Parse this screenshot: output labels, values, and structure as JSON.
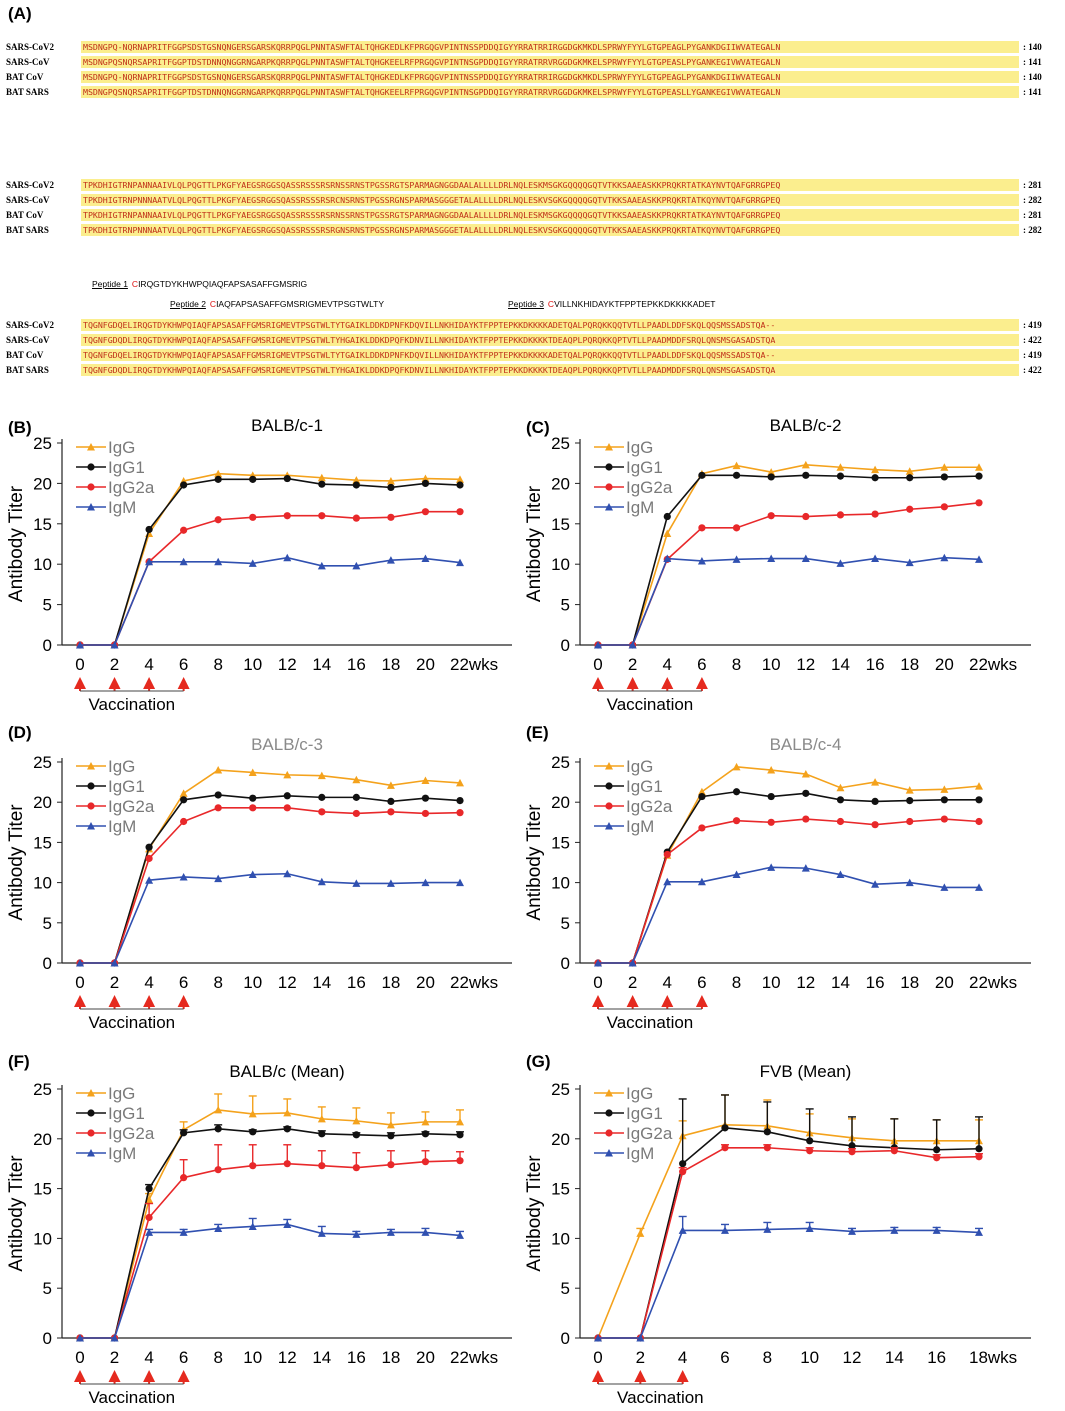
{
  "alignment": {
    "label": "(A)",
    "blocks": [
      {
        "rows": [
          {
            "name": "SARS-CoV2",
            "seq": "MSDNGPQ-NQRNAPRITFGGPSDSTGSNQNGERSGARSKQRRPQGLPNNTASWFTALTQHGKEDLKFPRGQGVPINTNSSPDDQIGYYRRATRRIRGGDGKMKDLSPRWYFYYLGTGPEAGLPYGANKDGIIWVATEGALN",
            "num": "140"
          },
          {
            "name": "SARS-CoV",
            "seq": "MSDNGPQSNQRSAPRITFGGPTDSTDNNQNGGRNGARPKQRRPQGLPNNTASWFTALTQHGKEELRFPRGQGVPINTNSGPDDQIGYYRRATRRVRGGDGKMKELSPRWYFYYLGTGPEASLPYGANKEGIVWVATEGALN",
            "num": "141"
          },
          {
            "name": "BAT CoV",
            "seq": "MSDNGPQ-NQRNAPRITFGGPSDSTGSNQNGERSGARSKQRRPQGLPNNTASWFTALTQHGKEDLKFPRGQGVPINTNSSPDDQIGYYRRATRRIRGGDGKMKDLSPRWYFYYLGTGPEAGLPYGANKDGIIWVATEGALN",
            "num": "140"
          },
          {
            "name": "BAT SARS",
            "seq": "MSDNGPQSNQRSAPRITFGGPTDSTDNNQNGGRNGARPKQRRPQGLPNNTASWFTALTQHGKEELRFPRGQGVPINTNSGPDDQIGYYRRATRRVRGGDGKMKELSPRWYFYYLGTGPEASLLYGANKEGIVWVATEGALN",
            "num": "141"
          }
        ]
      },
      {
        "rows": [
          {
            "name": "SARS-CoV2",
            "seq": "TPKDHIGTRNPANNAAIVLQLPQGTTLPKGFYAEGSRGGSQASSRSSSRSRNSSRNSTPGSSRGTSPARMAGNGGDAALALLLLDRLNQLESKMSGKGQQQQGQTVTKKSAAEASKKPRQKRTATKAYNVTQAFGRRGPEQ",
            "num": "281"
          },
          {
            "name": "SARS-CoV",
            "seq": "TPKDHIGTRNPNNNAATVLQLPQGTTLPKGFYAEGSRGGSQASSRSSSRSRCNSRNSTPGSSRGNSPARMASGGGETALALLLLDRLNQLESKVSGKGQQQQGQTVTKKSAAEASKKPRQKRTATKQYNVTQAFGRRGPEQ",
            "num": "282"
          },
          {
            "name": "BAT CoV",
            "seq": "TPKDHIGTRNPANNAAIVLQLPQGTTLPKGFYAEGSRGGSQASSRSSSRSRNSSRNSTPGSSRGTSPARMAGNGGDAALALLLLDRLNQLESKMSGKGQQQQGQTVTKKSAAEASKKPRQKRTATKAYNVTQAFGRRGPEQ",
            "num": "281"
          },
          {
            "name": "BAT SARS",
            "seq": "TPKDHIGTRNPNNNAATVLQLPQGTTLPKGFYAEGSRGGSQASSRSSSRSRGNSRNSTPGSSRGNSPARMASGGGETALALLLLDRLNQLESKVSGKGQQQQGQTVTKKSAAEASKKPRQKRTATKQYNVTQAFGRRGPEQ",
            "num": "282"
          }
        ]
      },
      {
        "rows": [
          {
            "name": "SARS-CoV2",
            "seq": "TQGNFGDQELIRQGTDYKHWPQIAQFAPSASAFFGMSRIGMEVTPSGTWLTYTGAIKLDDKDPNFKDQVILLNKHIDAYKTFPPTEPKKDKKKKADETQALPQRQKKQQTVTLLPAADLDDFSKQLQQSMSSADSTQA--",
            "num": "419"
          },
          {
            "name": "SARS-CoV",
            "seq": "TQGNFGDQDLIRQGTDYKHWPQIAQFAPSASAFFGMSRIGMEVTPSGTWLTYHGAIKLDDKDPQFKDNVILLNKHIDAYKTFPPTEPKKDKKKKTDEAQPLPQRQKKQPTVTLLPAADMDDFSRQLQNSMSGASADSTQA",
            "num": "422"
          },
          {
            "name": "BAT CoV",
            "seq": "TQGNFGDQELIRQGTDYKHWPQIAQFAPSASAFFGMSRIGMEVTPSGTWLTYTGAIKLDDKDPNFKDQVILLNKHIDAYKTFPPTEPKKDKKKKADETQALPQRQKKQQTVTLLPAADLDDFSKQLQQSMSSADSTQA--",
            "num": "419"
          },
          {
            "name": "BAT SARS",
            "seq": "TQGNFGDQDLIRQGTDYKHWPQIAQFAPSASAFFGMSRIGMEVTPSGTWLTYHGAIKLDDKDPQFKDNVILLNKHIDAYKTFPPTEPKKDKKKKTDEAQPLPQRQKKQPTVTLLPAADMDDFSRQLQNSMSGASADSTQA",
            "num": "422"
          }
        ]
      }
    ],
    "peptides": [
      {
        "label": "Peptide 1",
        "lead": "C",
        "seq": "IRQGTDYKHWPQIAQFAPSASAFFGMSRIG"
      },
      {
        "label": "Peptide 2",
        "lead": "C",
        "seq": "IAQFAPSASAFFGMSRIGMEVTPSGTWLTY"
      },
      {
        "label": "Peptide 3",
        "lead": "C",
        "seq": "VILLNKHIDAYKTFPPTEPKKDKKKKADET"
      }
    ]
  },
  "chart_data": [
    {
      "panel": "(B)",
      "type": "line",
      "title": "BALB/c-1",
      "title_color": "#000000",
      "ylabel": "Antibody Titer",
      "ylim": [
        0,
        25
      ],
      "yticks": [
        0,
        5,
        10,
        15,
        20,
        25
      ],
      "xticks": [
        0,
        2,
        4,
        6,
        8,
        10,
        12,
        14,
        16,
        18,
        20,
        22
      ],
      "x_unit": "wks",
      "x": [
        0,
        2,
        4,
        6,
        8,
        10,
        12,
        14,
        16,
        18,
        20,
        22
      ],
      "vaccination": {
        "label": "Vaccination",
        "weeks": [
          0,
          2,
          4,
          6
        ]
      },
      "series": [
        {
          "name": "IgG",
          "color": "#f4a21c",
          "marker": "triangle",
          "values": [
            0,
            0,
            13.8,
            20.3,
            21.2,
            21,
            21,
            20.7,
            20.4,
            20.3,
            20.6,
            20.5
          ]
        },
        {
          "name": "IgG1",
          "color": "#111111",
          "marker": "circle",
          "values": [
            0,
            0,
            14.3,
            19.8,
            20.5,
            20.5,
            20.6,
            19.9,
            19.8,
            19.5,
            20,
            19.8
          ]
        },
        {
          "name": "IgG2a",
          "color": "#e8282a",
          "marker": "circle",
          "values": [
            0,
            0,
            10.3,
            14.2,
            15.5,
            15.8,
            16,
            16,
            15.7,
            15.8,
            16.5,
            16.5
          ]
        },
        {
          "name": "IgM",
          "color": "#3050b0",
          "marker": "triangle",
          "values": [
            0,
            0,
            10.3,
            10.3,
            10.3,
            10.1,
            10.8,
            9.8,
            9.8,
            10.5,
            10.7,
            10.2
          ]
        }
      ]
    },
    {
      "panel": "(C)",
      "type": "line",
      "title": "BALB/c-2",
      "title_color": "#000000",
      "ylabel": "Antibody Titer",
      "ylim": [
        0,
        25
      ],
      "yticks": [
        0,
        5,
        10,
        15,
        20,
        25
      ],
      "xticks": [
        0,
        2,
        4,
        6,
        8,
        10,
        12,
        14,
        16,
        18,
        20,
        22
      ],
      "x_unit": "wks",
      "x": [
        0,
        2,
        4,
        6,
        8,
        10,
        12,
        14,
        16,
        18,
        20,
        22
      ],
      "vaccination": {
        "label": "Vaccination",
        "weeks": [
          0,
          2,
          4,
          6
        ]
      },
      "series": [
        {
          "name": "IgG",
          "color": "#f4a21c",
          "marker": "triangle",
          "values": [
            0,
            0,
            13.8,
            21.2,
            22.2,
            21.4,
            22.3,
            22,
            21.7,
            21.5,
            22,
            22
          ]
        },
        {
          "name": "IgG1",
          "color": "#111111",
          "marker": "circle",
          "values": [
            0,
            0,
            15.9,
            21,
            21,
            20.8,
            21,
            20.9,
            20.7,
            20.7,
            20.8,
            20.9
          ]
        },
        {
          "name": "IgG2a",
          "color": "#e8282a",
          "marker": "circle",
          "values": [
            0,
            0,
            10.6,
            14.5,
            14.5,
            16,
            15.9,
            16.1,
            16.2,
            16.8,
            17.1,
            17.6
          ]
        },
        {
          "name": "IgM",
          "color": "#3050b0",
          "marker": "triangle",
          "values": [
            0,
            0,
            10.7,
            10.4,
            10.6,
            10.7,
            10.7,
            10.1,
            10.7,
            10.2,
            10.8,
            10.6
          ]
        }
      ]
    },
    {
      "panel": "(D)",
      "type": "line",
      "title": "BALB/c-3",
      "title_color": "#8a8a8a",
      "ylabel": "Antibody Titer",
      "ylim": [
        0,
        25
      ],
      "yticks": [
        0,
        5,
        10,
        15,
        20,
        25
      ],
      "xticks": [
        0,
        2,
        4,
        6,
        8,
        10,
        12,
        14,
        16,
        18,
        20,
        22
      ],
      "x_unit": "wks",
      "x": [
        0,
        2,
        4,
        6,
        8,
        10,
        12,
        14,
        16,
        18,
        20,
        22
      ],
      "vaccination": {
        "label": "Vaccination",
        "weeks": [
          0,
          2,
          4,
          6
        ]
      },
      "series": [
        {
          "name": "IgG",
          "color": "#f4a21c",
          "marker": "triangle",
          "values": [
            0,
            0,
            14.2,
            21.1,
            24,
            23.7,
            23.4,
            23.3,
            22.8,
            22.1,
            22.7,
            22.4
          ]
        },
        {
          "name": "IgG1",
          "color": "#111111",
          "marker": "circle",
          "values": [
            0,
            0,
            14.4,
            20.3,
            20.9,
            20.5,
            20.8,
            20.6,
            20.6,
            20.1,
            20.5,
            20.2
          ]
        },
        {
          "name": "IgG2a",
          "color": "#e8282a",
          "marker": "circle",
          "values": [
            0,
            0,
            13,
            17.6,
            19.3,
            19.3,
            19.3,
            18.8,
            18.6,
            18.8,
            18.6,
            18.7
          ]
        },
        {
          "name": "IgM",
          "color": "#3050b0",
          "marker": "triangle",
          "values": [
            0,
            0,
            10.3,
            10.7,
            10.5,
            11,
            11.1,
            10.1,
            9.9,
            9.9,
            10,
            10
          ]
        }
      ]
    },
    {
      "panel": "(E)",
      "type": "line",
      "title": "BALB/c-4",
      "title_color": "#8a8a8a",
      "ylabel": "Antibody Titer",
      "ylim": [
        0,
        25
      ],
      "yticks": [
        0,
        5,
        10,
        15,
        20,
        25
      ],
      "xticks": [
        0,
        2,
        4,
        6,
        8,
        10,
        12,
        14,
        16,
        18,
        20,
        22
      ],
      "x_unit": "wks",
      "x": [
        0,
        2,
        4,
        6,
        8,
        10,
        12,
        14,
        16,
        18,
        20,
        22
      ],
      "vaccination": {
        "label": "Vaccination",
        "weeks": [
          0,
          2,
          4,
          6
        ]
      },
      "series": [
        {
          "name": "IgG",
          "color": "#f4a21c",
          "marker": "triangle",
          "values": [
            0,
            0,
            13.4,
            21.3,
            24.4,
            24,
            23.5,
            21.8,
            22.5,
            21.5,
            21.6,
            22
          ]
        },
        {
          "name": "IgG1",
          "color": "#111111",
          "marker": "circle",
          "values": [
            0,
            0,
            13.8,
            20.7,
            21.3,
            20.7,
            21.1,
            20.3,
            20.1,
            20.2,
            20.3,
            20.3
          ]
        },
        {
          "name": "IgG2a",
          "color": "#e8282a",
          "marker": "circle",
          "values": [
            0,
            0,
            13.5,
            16.8,
            17.7,
            17.5,
            17.9,
            17.6,
            17.2,
            17.6,
            17.9,
            17.6
          ]
        },
        {
          "name": "IgM",
          "color": "#3050b0",
          "marker": "triangle",
          "values": [
            0,
            0,
            10.1,
            10.1,
            11,
            11.9,
            11.8,
            11,
            9.8,
            10,
            9.4,
            9.4
          ]
        }
      ]
    },
    {
      "panel": "(F)",
      "type": "line",
      "title": "BALB/c (Mean)",
      "title_color": "#000000",
      "ylabel": "Antibody Titer",
      "ylim": [
        0,
        25
      ],
      "yticks": [
        0,
        5,
        10,
        15,
        20,
        25
      ],
      "xticks": [
        0,
        2,
        4,
        6,
        8,
        10,
        12,
        14,
        16,
        18,
        20,
        22
      ],
      "x_unit": "wks",
      "x": [
        0,
        2,
        4,
        6,
        8,
        10,
        12,
        14,
        16,
        18,
        20,
        22
      ],
      "vaccination": {
        "label": "Vaccination",
        "weeks": [
          0,
          2,
          4,
          6
        ]
      },
      "series": [
        {
          "name": "IgG",
          "color": "#f4a21c",
          "marker": "triangle",
          "values": [
            0,
            0,
            13.9,
            20.9,
            22.9,
            22.5,
            22.6,
            22,
            21.8,
            21.4,
            21.7,
            21.7
          ],
          "errors": [
            0,
            0,
            0.6,
            0.8,
            1.6,
            1.8,
            1.4,
            1.2,
            1.3,
            1.2,
            1.0,
            1.2
          ]
        },
        {
          "name": "IgG1",
          "color": "#111111",
          "marker": "circle",
          "values": [
            0,
            0,
            15,
            20.6,
            21,
            20.7,
            21,
            20.5,
            20.4,
            20.3,
            20.5,
            20.4
          ],
          "errors": [
            0,
            0,
            0.4,
            0.3,
            0.4,
            0.2,
            0.2,
            0.3,
            0.2,
            0.3,
            0.2,
            0.3
          ]
        },
        {
          "name": "IgG2a",
          "color": "#e8282a",
          "marker": "circle",
          "values": [
            0,
            0,
            12.1,
            16.1,
            16.9,
            17.3,
            17.5,
            17.3,
            17.1,
            17.4,
            17.7,
            17.8
          ],
          "errors": [
            0,
            0,
            1.4,
            1.8,
            2.5,
            2.1,
            1.9,
            1.5,
            1.5,
            1.4,
            1.1,
            0.9
          ]
        },
        {
          "name": "IgM",
          "color": "#3050b0",
          "marker": "triangle",
          "values": [
            0,
            0,
            10.6,
            10.6,
            11,
            11.2,
            11.4,
            10.5,
            10.4,
            10.6,
            10.6,
            10.3
          ],
          "errors": [
            0,
            0,
            0.3,
            0.3,
            0.4,
            0.8,
            0.5,
            0.7,
            0.3,
            0.3,
            0.4,
            0.4
          ]
        }
      ]
    },
    {
      "panel": "(G)",
      "type": "line",
      "title": "FVB (Mean)",
      "title_color": "#000000",
      "ylabel": "Antibody Titer",
      "ylim": [
        0,
        25
      ],
      "yticks": [
        0,
        5,
        10,
        15,
        20,
        25
      ],
      "xticks": [
        0,
        2,
        4,
        6,
        8,
        10,
        12,
        14,
        16,
        18
      ],
      "x_unit": "wks",
      "x": [
        0,
        2,
        4,
        6,
        8,
        10,
        12,
        14,
        16,
        18
      ],
      "vaccination": {
        "label": "Vaccination",
        "weeks": [
          0,
          2,
          4
        ]
      },
      "series": [
        {
          "name": "IgG",
          "color": "#f4a21c",
          "marker": "triangle",
          "values": [
            0,
            10.5,
            20.3,
            21.4,
            21.3,
            20.6,
            20.1,
            19.8,
            19.8,
            19.8
          ],
          "errors": [
            0,
            0.5,
            1.5,
            3.0,
            2.6,
            1.9,
            1.9,
            2.2,
            2.1,
            2.1
          ]
        },
        {
          "name": "IgG1",
          "color": "#111111",
          "marker": "circle",
          "values": [
            0,
            0,
            17.5,
            21.1,
            20.7,
            19.8,
            19.3,
            19.1,
            18.9,
            19
          ],
          "errors": [
            0,
            0,
            6.5,
            3.3,
            3.0,
            3.2,
            2.9,
            2.9,
            3.0,
            3.2
          ]
        },
        {
          "name": "IgG2a",
          "color": "#e8282a",
          "marker": "circle",
          "values": [
            0,
            0,
            16.7,
            19.1,
            19.1,
            18.8,
            18.7,
            18.8,
            18.1,
            18.2
          ],
          "errors": [
            0,
            0,
            0.4,
            0.3,
            0.3,
            0.3,
            0.3,
            0.3,
            0.3,
            0.3
          ]
        },
        {
          "name": "IgM",
          "color": "#3050b0",
          "marker": "triangle",
          "values": [
            0,
            0,
            10.8,
            10.8,
            10.9,
            11,
            10.7,
            10.8,
            10.8,
            10.6
          ],
          "errors": [
            0,
            0,
            1.4,
            0.6,
            0.7,
            0.6,
            0.3,
            0.3,
            0.3,
            0.4
          ]
        }
      ]
    }
  ]
}
